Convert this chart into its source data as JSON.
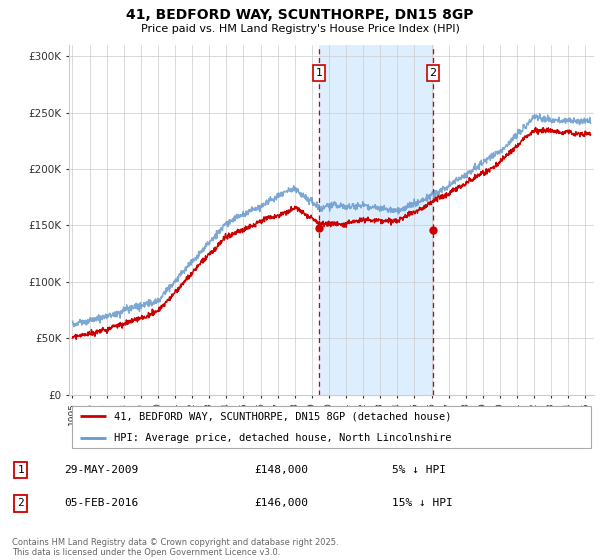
{
  "title": "41, BEDFORD WAY, SCUNTHORPE, DN15 8GP",
  "subtitle": "Price paid vs. HM Land Registry's House Price Index (HPI)",
  "ylabel_ticks": [
    "£0",
    "£50K",
    "£100K",
    "£150K",
    "£200K",
    "£250K",
    "£300K"
  ],
  "ytick_values": [
    0,
    50000,
    100000,
    150000,
    200000,
    250000,
    300000
  ],
  "ylim": [
    0,
    310000
  ],
  "xlim_start": 1994.8,
  "xlim_end": 2025.5,
  "hpi_color": "#6699cc",
  "hpi_color_fill": "#ddeeff",
  "price_color": "#cc0000",
  "sale1_x": 2009.41,
  "sale1_y": 148000,
  "sale1_label": "1",
  "sale2_x": 2016.09,
  "sale2_y": 146000,
  "sale2_label": "2",
  "shade_color": "#ddeeff",
  "vline_color": "#cc0000",
  "legend_line1": "41, BEDFORD WAY, SCUNTHORPE, DN15 8GP (detached house)",
  "legend_line2": "HPI: Average price, detached house, North Lincolnshire",
  "annotation1_date": "29-MAY-2009",
  "annotation1_price": "£148,000",
  "annotation1_hpi": "5% ↓ HPI",
  "annotation2_date": "05-FEB-2016",
  "annotation2_price": "£146,000",
  "annotation2_hpi": "15% ↓ HPI",
  "footnote": "Contains HM Land Registry data © Crown copyright and database right 2025.\nThis data is licensed under the Open Government Licence v3.0.",
  "background_color": "#ffffff",
  "grid_color": "#cccccc"
}
